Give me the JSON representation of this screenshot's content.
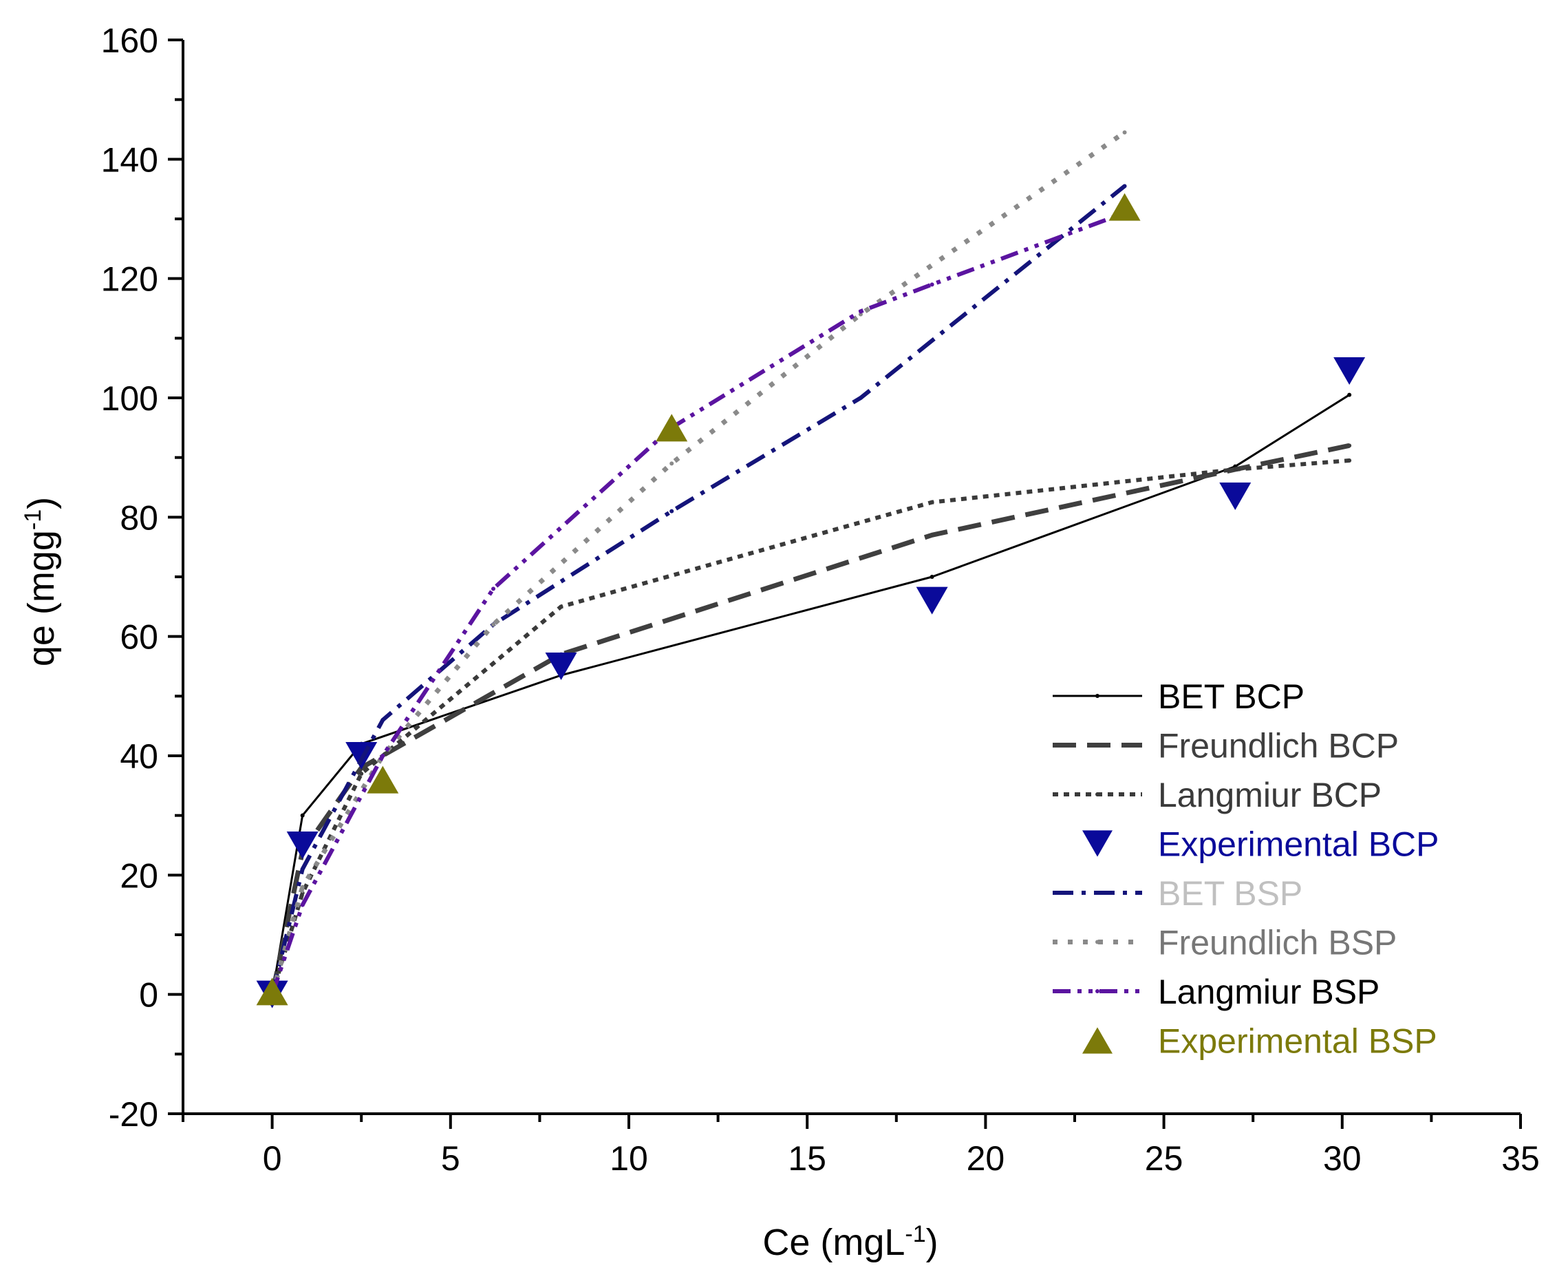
{
  "chart_data": {
    "type": "line",
    "title": "",
    "xlabel": "Ce (mgL",
    "xlabel_sup": "-1",
    "xlabel_end": ")",
    "ylabel": "qe (mgg",
    "ylabel_sup": "-1",
    "ylabel_end": ")",
    "xlim": [
      -2.5,
      35
    ],
    "ylim": [
      -20,
      160
    ],
    "x_ticks": [
      0,
      5,
      10,
      15,
      20,
      25,
      30,
      35
    ],
    "x_tick_labels": [
      "0",
      "5",
      "10",
      "15",
      "20",
      "25",
      "30",
      "35"
    ],
    "y_ticks": [
      -20,
      0,
      20,
      40,
      60,
      80,
      100,
      120,
      140,
      160
    ],
    "y_tick_labels": [
      "-20",
      "0",
      "20",
      "40",
      "60",
      "80",
      "100",
      "120",
      "140",
      "160"
    ],
    "grid": false,
    "legend_position": "bottom-right",
    "series": [
      {
        "name": "BET BCP",
        "kind": "line",
        "style": "solid",
        "color": "#000000",
        "x": [
          0,
          0.85,
          2.5,
          8.1,
          18.5,
          27,
          30.2
        ],
        "y": [
          0,
          30,
          42,
          53.5,
          70,
          88.5,
          100.5
        ]
      },
      {
        "name": "Freundlich BCP",
        "kind": "line",
        "style": "dash",
        "color": "#3f3f3f",
        "x": [
          0,
          0.85,
          2.5,
          8.1,
          18.5,
          27,
          30.2
        ],
        "y": [
          0,
          24,
          38,
          57,
          77,
          88,
          92
        ]
      },
      {
        "name": "Langmiur BCP",
        "kind": "line",
        "style": "shortdot",
        "color": "#3a3a3a",
        "x": [
          0,
          0.85,
          2.5,
          8.1,
          18.5,
          27,
          30.2
        ],
        "y": [
          0,
          17,
          37,
          65,
          82.5,
          88,
          89.5
        ]
      },
      {
        "name": "Experimental BCP",
        "kind": "marker",
        "marker": "triangle-down",
        "color": "#0a0a9a",
        "x": [
          0,
          0.85,
          2.5,
          8.1,
          18.5,
          27,
          30.2
        ],
        "y": [
          0,
          25,
          40,
          55,
          66,
          83.5,
          104.5
        ]
      },
      {
        "name": "BET BSP",
        "kind": "line",
        "style": "dashdot",
        "color": "#14147a",
        "legend_text_color": "#c0c0c0",
        "x": [
          0,
          0.85,
          3.1,
          6.2,
          11.2,
          16.5,
          23.9
        ],
        "y": [
          0,
          21,
          46,
          62,
          81,
          100,
          135.5
        ]
      },
      {
        "name": "Freundlich BSP",
        "kind": "line",
        "style": "dotted",
        "color": "#8a8a8a",
        "legend_text_color": "#777777",
        "x": [
          0,
          0.85,
          3.1,
          6.2,
          11.2,
          16.5,
          23.9
        ],
        "y": [
          0,
          18,
          40,
          62,
          89,
          114,
          144.5
        ]
      },
      {
        "name": "Langmiur BSP",
        "kind": "line",
        "style": "dashdotdot",
        "color": "#5b14a0",
        "legend_text_color": "#000000",
        "x": [
          0,
          0.85,
          3.1,
          6.2,
          11.2,
          16.5,
          18.5,
          23.9
        ],
        "y": [
          0,
          15,
          40,
          68,
          95,
          114.5,
          119,
          131
        ]
      },
      {
        "name": "Experimental BSP",
        "kind": "marker",
        "marker": "triangle-up",
        "color": "#7c7a0a",
        "x": [
          0,
          3.1,
          11.2,
          23.9
        ],
        "y": [
          0.5,
          36,
          95,
          132
        ]
      }
    ]
  }
}
